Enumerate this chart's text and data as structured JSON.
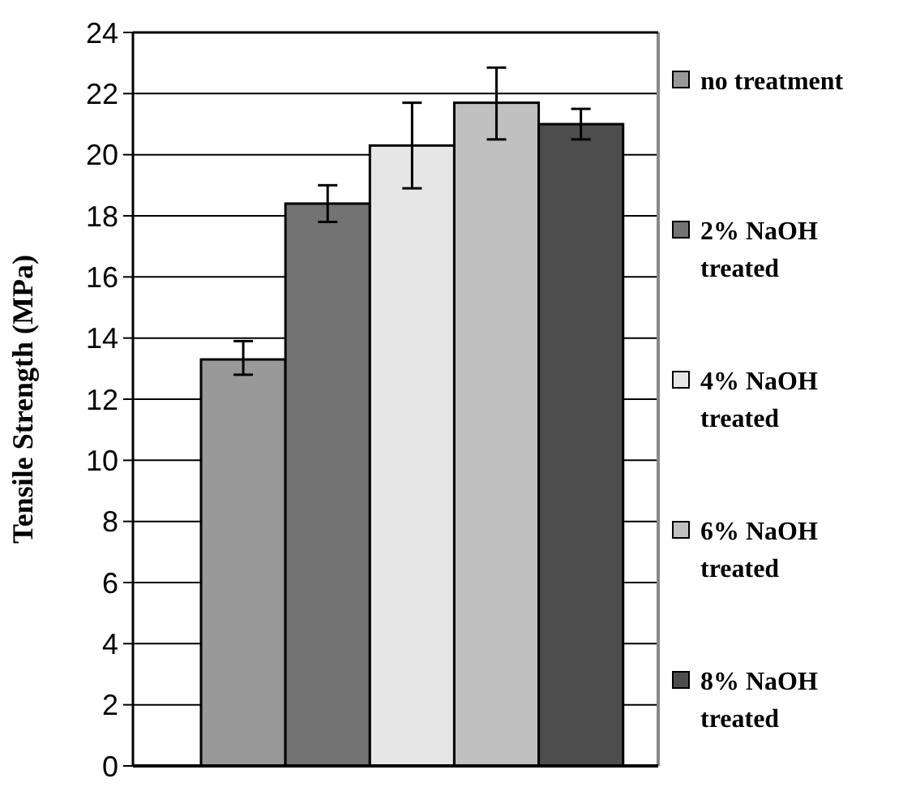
{
  "chart_data": {
    "type": "bar",
    "ylabel": "Tensile Strength (MPa)",
    "categories": [
      null
    ],
    "series": [
      {
        "name": "no treatment",
        "color": "#999999",
        "values": [
          13.3
        ],
        "errors": [
          [
            12.8,
            13.9
          ]
        ]
      },
      {
        "name": "2% NaOH treated",
        "color": "#737373",
        "values": [
          18.4
        ],
        "errors": [
          [
            17.8,
            19.0
          ]
        ]
      },
      {
        "name": "4% NaOH treated",
        "color": "#e6e6e6",
        "values": [
          20.3
        ],
        "errors": [
          [
            18.9,
            21.7
          ]
        ]
      },
      {
        "name": "6% NaOH treated",
        "color": "#c0c0c0",
        "values": [
          21.7
        ],
        "errors": [
          [
            20.5,
            22.85
          ]
        ]
      },
      {
        "name": "8% NaOH treated",
        "color": "#4d4d4d",
        "values": [
          21.0
        ],
        "errors": [
          [
            20.5,
            21.5
          ]
        ]
      }
    ],
    "ylim": [
      0,
      24
    ],
    "yticks": [
      0,
      2,
      4,
      6,
      8,
      10,
      12,
      14,
      16,
      18,
      20,
      22,
      24
    ],
    "grid": "y",
    "legend": "right"
  }
}
